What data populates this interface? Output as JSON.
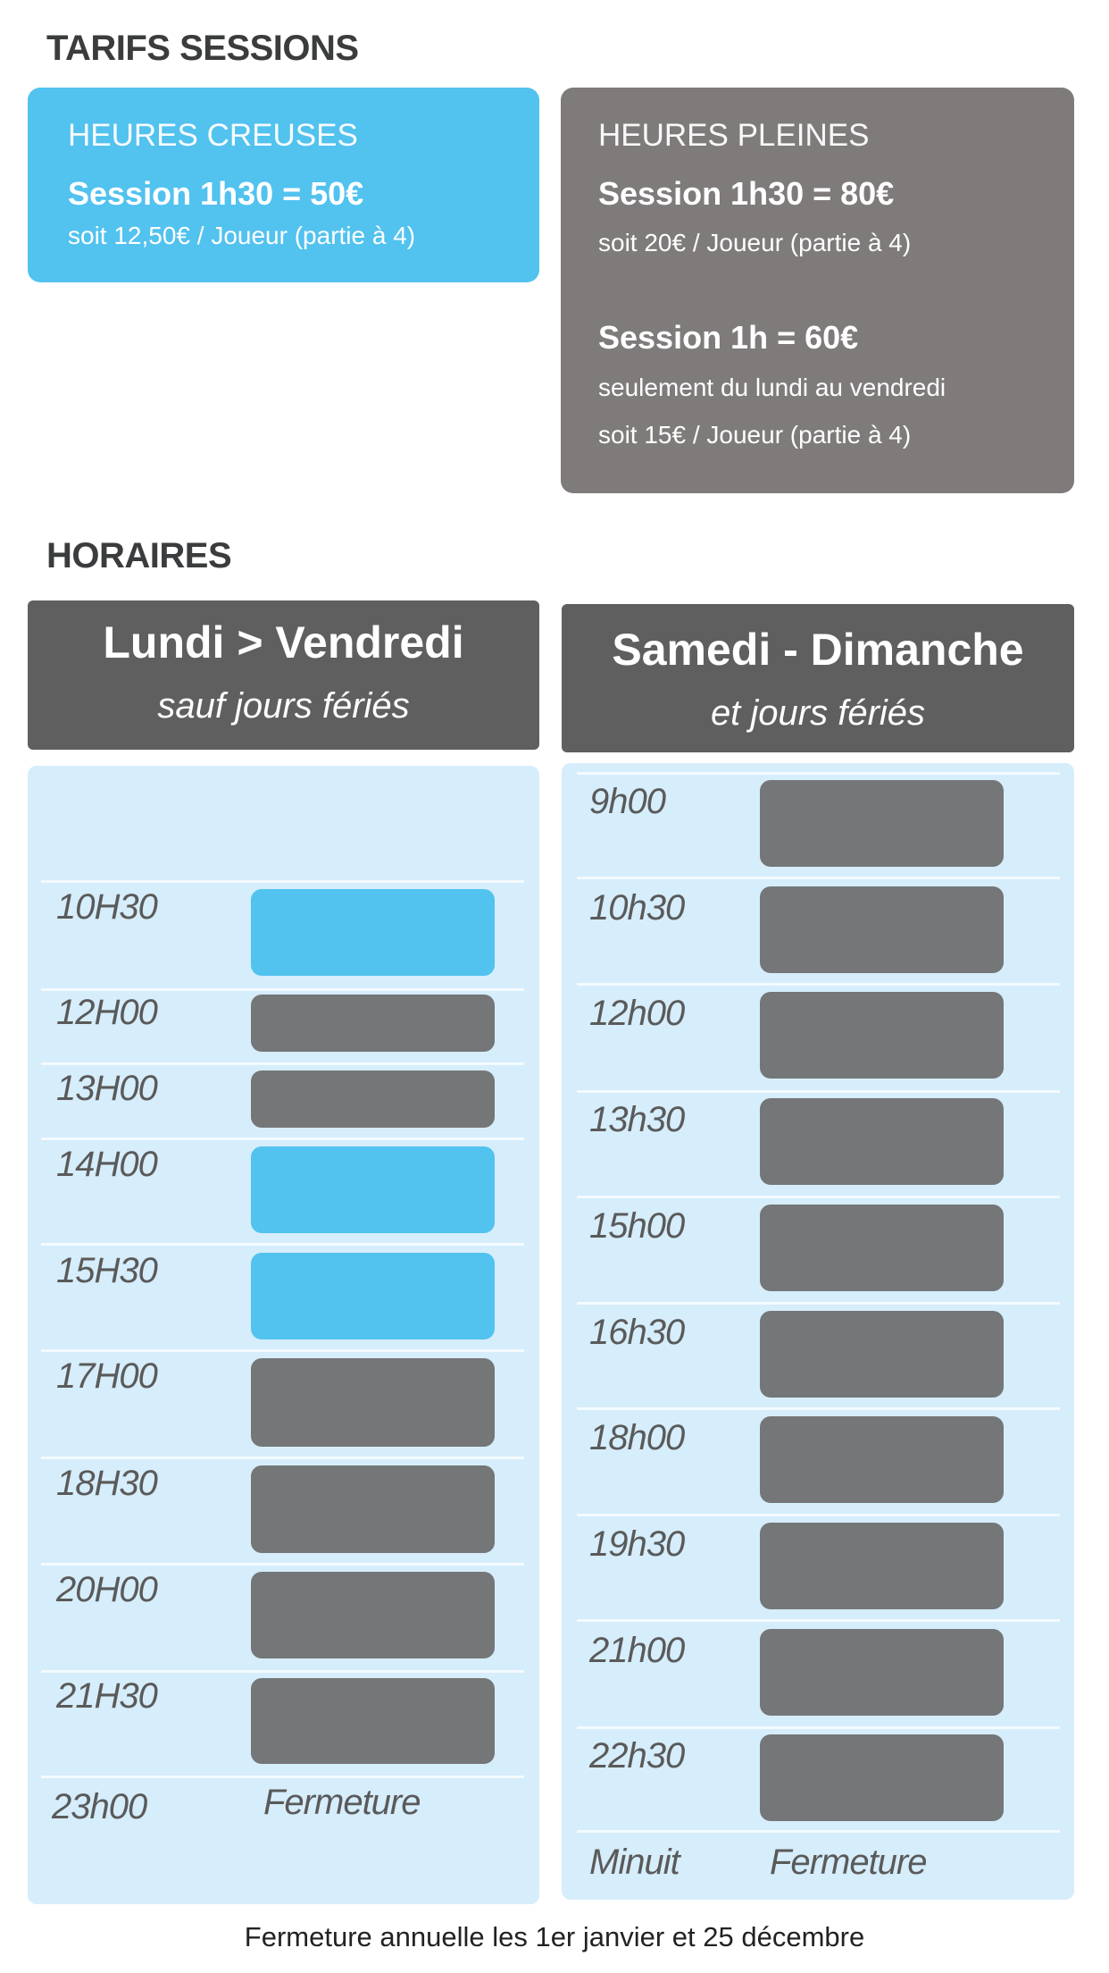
{
  "tarifs": {
    "title": "TARIFS SESSIONS",
    "creuses": {
      "label": "HEURES CREUSES",
      "session": "Session 1h30 = 50€",
      "detail": "soit 12,50€ / Joueur (partie à 4)",
      "color": "#52c2ef"
    },
    "pleines": {
      "label": "HEURES PLEINES",
      "session1": "Session 1h30 = 80€",
      "detail1": "soit 20€ / Joueur (partie à 4)",
      "session2": "Session 1h = 60€",
      "note2": "seulement du lundi au vendredi",
      "detail2": "soit 15€ / Joueur (partie à 4)",
      "color": "#7f7b7b"
    }
  },
  "horaires": {
    "title": "HORAIRES",
    "weekday": {
      "title": "Lundi  > Vendredi",
      "subtitle": "sauf jours fériés",
      "slots": [
        {
          "time": "10H30",
          "type": "creuses"
        },
        {
          "time": "12H00",
          "type": "pleines"
        },
        {
          "time": "13H00",
          "type": "pleines"
        },
        {
          "time": "14H00",
          "type": "creuses"
        },
        {
          "time": "15H30",
          "type": "creuses"
        },
        {
          "time": "17H00",
          "type": "pleines"
        },
        {
          "time": "18H30",
          "type": "pleines"
        },
        {
          "time": "20H00",
          "type": "pleines"
        },
        {
          "time": "21H30",
          "type": "pleines"
        }
      ],
      "closing_time": "23h00",
      "closing_label": "Fermeture"
    },
    "weekend": {
      "title": "Samedi - Dimanche",
      "subtitle": "et jours fériés",
      "slots": [
        {
          "time": "9h00",
          "type": "pleines"
        },
        {
          "time": "10h30",
          "type": "pleines"
        },
        {
          "time": "12h00",
          "type": "pleines"
        },
        {
          "time": "13h30",
          "type": "pleines"
        },
        {
          "time": "15h00",
          "type": "pleines"
        },
        {
          "time": "16h30",
          "type": "pleines"
        },
        {
          "time": "18h00",
          "type": "pleines"
        },
        {
          "time": "19h30",
          "type": "pleines"
        },
        {
          "time": "21h00",
          "type": "pleines"
        },
        {
          "time": "22h30",
          "type": "pleines"
        }
      ],
      "closing_time": "Minuit",
      "closing_label": "Fermeture"
    }
  },
  "footer": "Fermeture annuelle les 1er janvier et 25 décembre",
  "colors": {
    "creuses": "#52c2ef",
    "pleines": "#747677",
    "header": "#5f5f5f",
    "panel": "#d6edfb"
  }
}
